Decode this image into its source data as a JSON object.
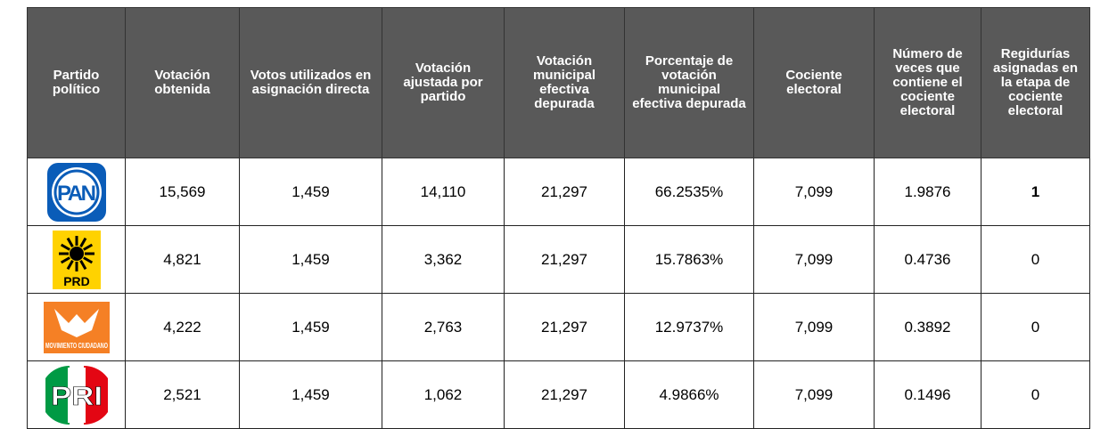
{
  "table": {
    "headers": [
      "Partido político",
      "Votación obtenida",
      "Votos utilizados en asignación directa",
      "Votación ajustada por partido",
      "Votación municipal efectiva depurada",
      "Porcentaje de votación municipal efectiva depurada",
      "Cociente electoral",
      "Número de veces que contiene el cociente electoral",
      "Regidurías asignadas en la etapa de cociente electoral"
    ],
    "rows": [
      {
        "logo": "PAN",
        "cells": [
          "15,569",
          "1,459",
          "14,110",
          "21,297",
          "66.2535%",
          "7,099",
          "1.9876",
          "1"
        ]
      },
      {
        "logo": "PRD",
        "cells": [
          "4,821",
          "1,459",
          "3,362",
          "21,297",
          "15.7863%",
          "7,099",
          "0.4736",
          "0"
        ]
      },
      {
        "logo": "MOVIMIENTO CIUDADANO",
        "cells": [
          "4,222",
          "1,459",
          "2,763",
          "21,297",
          "12.9737%",
          "7,099",
          "0.3892",
          "0"
        ]
      },
      {
        "logo": "PRI",
        "cells": [
          "2,521",
          "1,459",
          "1,062",
          "21,297",
          "4.9866%",
          "7,099",
          "0.1496",
          "0"
        ]
      }
    ]
  }
}
